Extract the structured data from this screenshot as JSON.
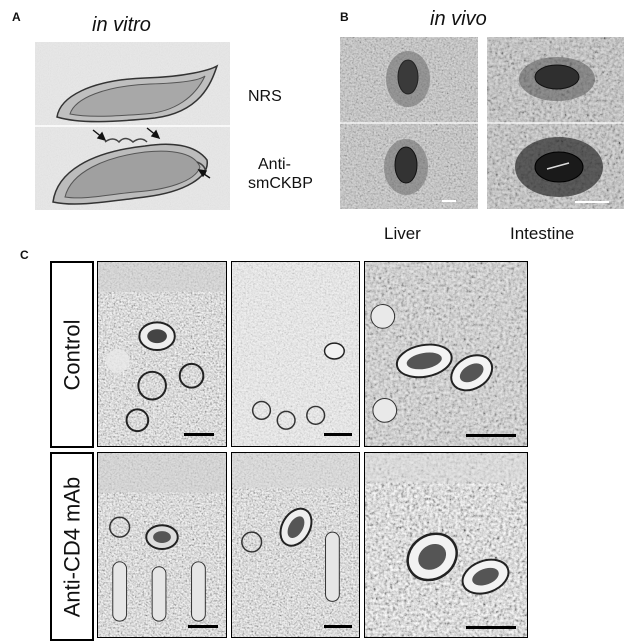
{
  "panel_a": {
    "letter": "A",
    "title": "in vitro",
    "labels": [
      "NRS",
      "Anti-",
      "smCKBP"
    ]
  },
  "panel_b": {
    "letter": "B",
    "title": "in vivo",
    "columns": [
      "Liver",
      "Intestine"
    ]
  },
  "panel_c": {
    "letter": "C",
    "rows": [
      "Control",
      "Anti-CD4 mAb"
    ]
  }
}
